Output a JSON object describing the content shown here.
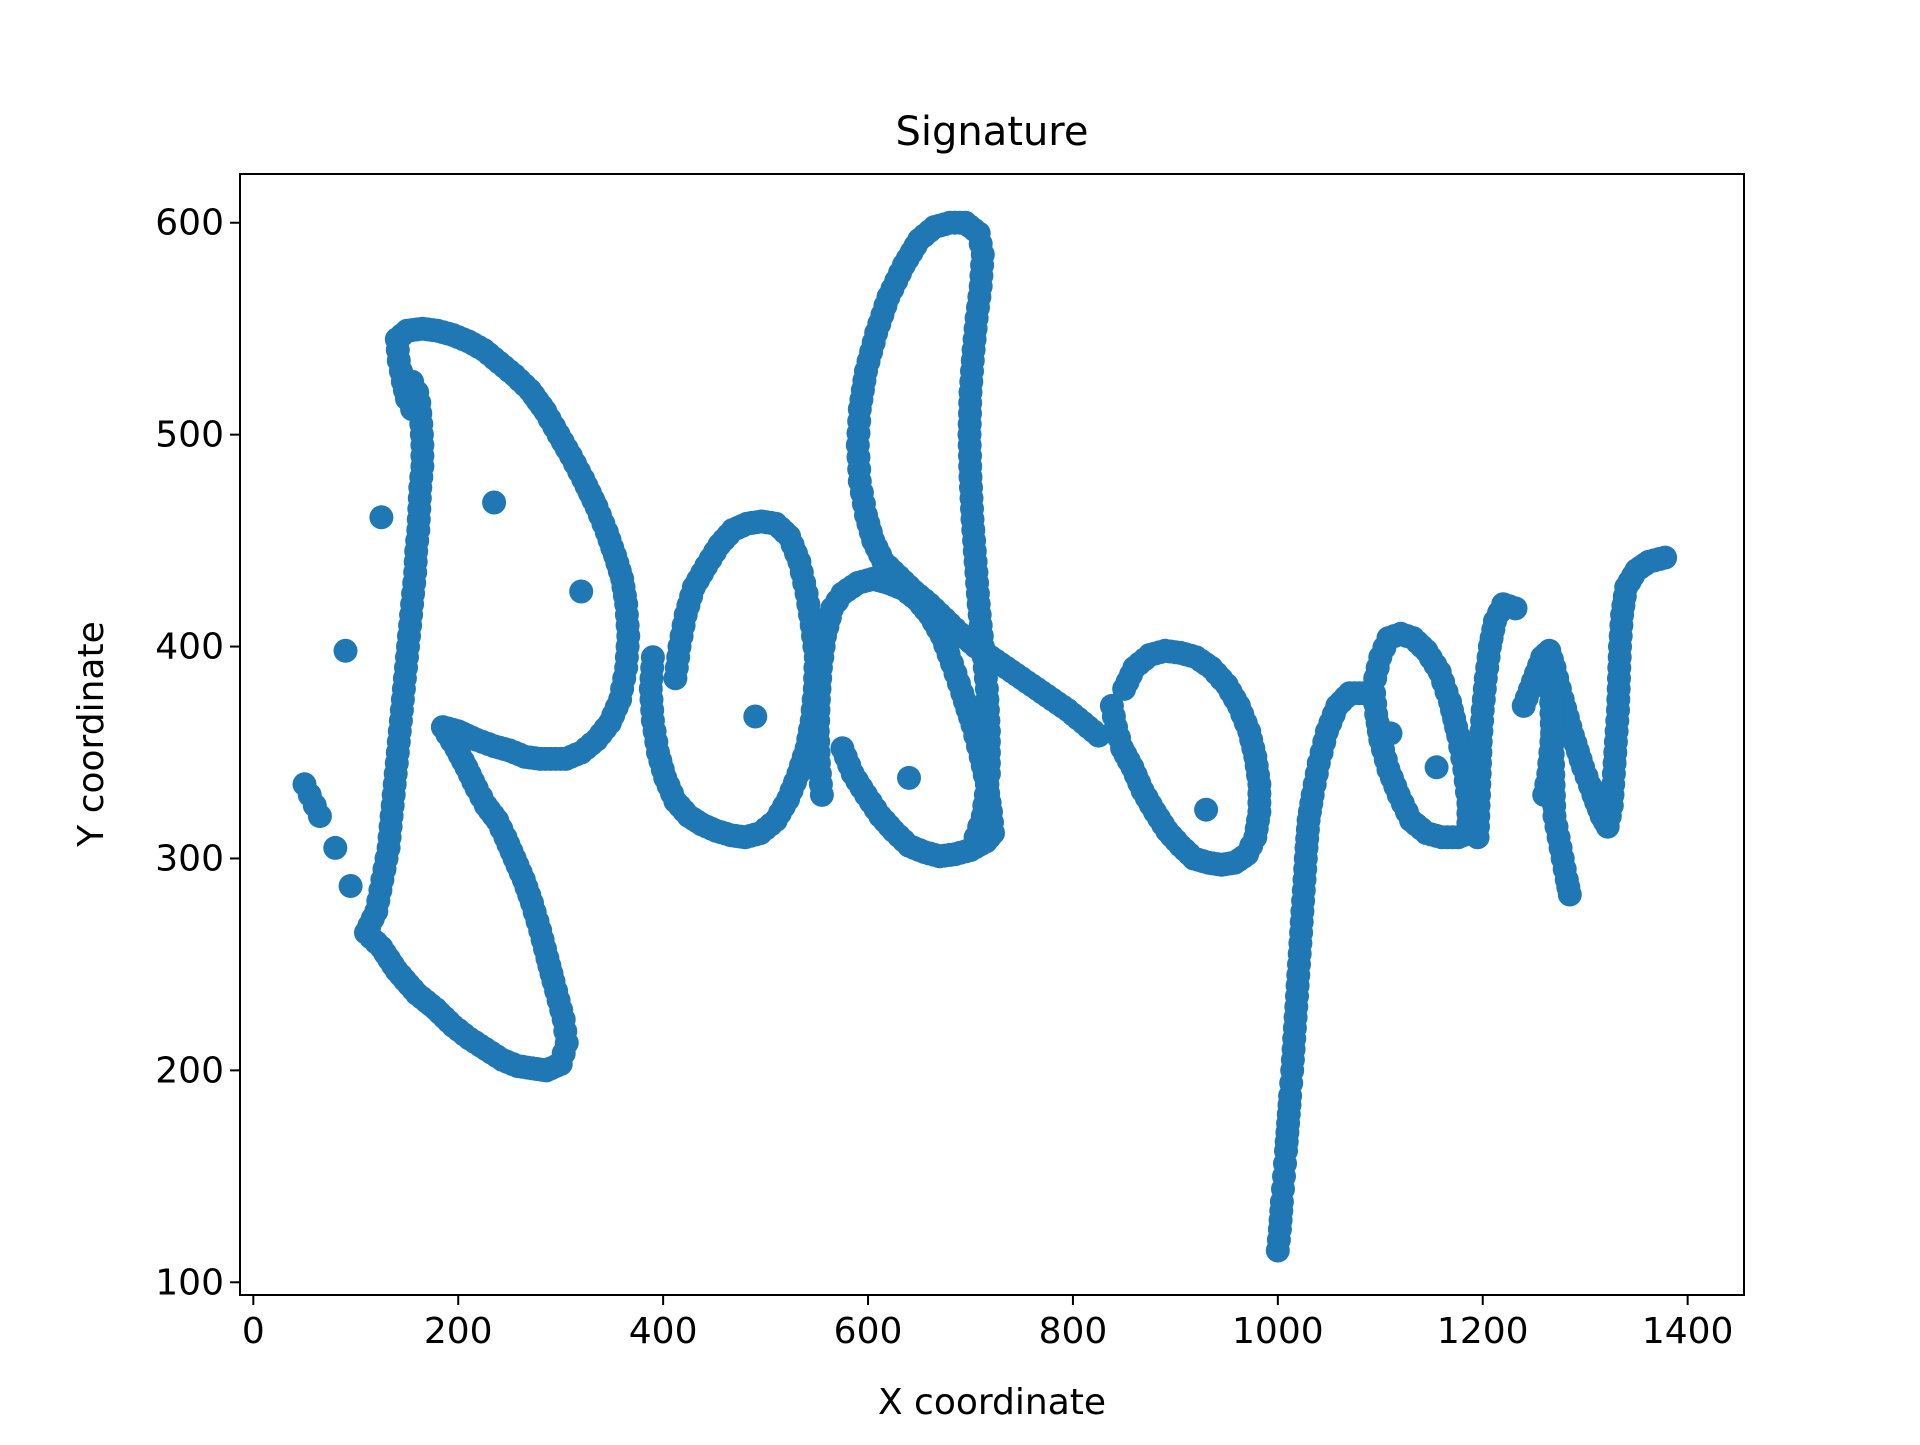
{
  "chart_data": {
    "type": "scatter",
    "title": "Signature",
    "xlabel": "X coordinate",
    "ylabel": "Y coordinate",
    "xlim": [
      -13,
      1455
    ],
    "ylim": [
      94,
      623
    ],
    "xticks": [
      0,
      200,
      400,
      600,
      800,
      1000,
      1200,
      1400
    ],
    "yticks": [
      100,
      200,
      300,
      400,
      500,
      600
    ],
    "grid": false,
    "legend": "none",
    "marker_color": "#1f77b4",
    "strokes": [
      [
        [
          50,
          335
        ],
        [
          55,
          330
        ],
        [
          60,
          325
        ],
        [
          65,
          320
        ]
      ],
      [
        [
          155,
          525
        ],
        [
          160,
          520
        ],
        [
          162,
          515
        ],
        [
          164,
          505
        ],
        [
          165,
          495
        ],
        [
          165,
          485
        ],
        [
          163,
          475
        ],
        [
          162,
          465
        ],
        [
          161,
          455
        ],
        [
          159,
          445
        ],
        [
          158,
          435
        ],
        [
          156,
          425
        ],
        [
          154,
          415
        ],
        [
          152,
          405
        ],
        [
          150,
          395
        ],
        [
          148,
          385
        ],
        [
          146,
          375
        ],
        [
          144,
          365
        ],
        [
          142,
          355
        ],
        [
          140,
          345
        ],
        [
          138,
          335
        ],
        [
          136,
          325
        ],
        [
          134,
          315
        ],
        [
          132,
          305
        ],
        [
          128,
          295
        ],
        [
          124,
          285
        ],
        [
          120,
          275
        ],
        [
          110,
          265
        ],
        [
          125,
          258
        ],
        [
          140,
          247
        ],
        [
          160,
          236
        ],
        [
          178,
          229
        ],
        [
          195,
          221
        ],
        [
          211,
          215
        ],
        [
          227,
          210
        ],
        [
          243,
          205
        ],
        [
          258,
          202
        ],
        [
          272,
          201
        ],
        [
          286,
          200
        ],
        [
          300,
          203
        ],
        [
          306,
          213
        ],
        [
          303,
          224
        ],
        [
          298,
          233
        ],
        [
          293,
          242
        ],
        [
          287,
          253
        ],
        [
          280,
          266
        ],
        [
          272,
          279
        ],
        [
          264,
          290
        ],
        [
          255,
          300
        ],
        [
          246,
          310
        ],
        [
          238,
          318
        ],
        [
          227,
          325
        ],
        [
          218,
          333
        ],
        [
          208,
          343
        ],
        [
          198,
          352
        ],
        [
          185,
          362
        ],
        [
          200,
          360
        ],
        [
          218,
          356
        ],
        [
          235,
          353
        ],
        [
          250,
          351
        ],
        [
          265,
          348
        ],
        [
          280,
          347
        ],
        [
          295,
          347
        ],
        [
          305,
          347
        ],
        [
          320,
          350
        ],
        [
          335,
          356
        ],
        [
          348,
          364
        ],
        [
          358,
          375
        ],
        [
          364,
          390
        ],
        [
          366,
          405
        ],
        [
          364,
          420
        ],
        [
          360,
          432
        ],
        [
          353,
          443
        ],
        [
          345,
          454
        ],
        [
          335,
          466
        ],
        [
          322,
          479
        ],
        [
          310,
          490
        ],
        [
          298,
          500
        ],
        [
          285,
          511
        ],
        [
          270,
          521
        ],
        [
          255,
          528
        ],
        [
          240,
          534
        ],
        [
          225,
          540
        ],
        [
          210,
          544
        ],
        [
          195,
          547
        ],
        [
          180,
          549
        ],
        [
          165,
          550
        ],
        [
          150,
          549
        ],
        [
          140,
          545
        ],
        [
          142,
          535
        ],
        [
          146,
          525
        ],
        [
          150,
          517
        ],
        [
          155,
          512
        ]
      ],
      [
        [
          390,
          395
        ],
        [
          388,
          380
        ],
        [
          390,
          365
        ],
        [
          395,
          350
        ],
        [
          402,
          338
        ],
        [
          412,
          327
        ],
        [
          425,
          320
        ],
        [
          438,
          316
        ],
        [
          452,
          313
        ],
        [
          466,
          311
        ],
        [
          480,
          310
        ],
        [
          495,
          312
        ],
        [
          510,
          318
        ],
        [
          522,
          328
        ],
        [
          532,
          340
        ],
        [
          540,
          352
        ],
        [
          545,
          365
        ],
        [
          548,
          380
        ],
        [
          549,
          395
        ],
        [
          545,
          410
        ],
        [
          540,
          425
        ],
        [
          533,
          440
        ],
        [
          523,
          452
        ],
        [
          510,
          458
        ],
        [
          496,
          459
        ],
        [
          482,
          458
        ],
        [
          468,
          455
        ],
        [
          455,
          448
        ],
        [
          442,
          438
        ],
        [
          430,
          428
        ],
        [
          422,
          415
        ],
        [
          416,
          400
        ],
        [
          412,
          385
        ]
      ],
      [
        [
          555,
          330
        ],
        [
          552,
          345
        ],
        [
          551,
          360
        ],
        [
          552,
          375
        ],
        [
          554,
          390
        ],
        [
          558,
          405
        ],
        [
          565,
          418
        ],
        [
          575,
          425
        ],
        [
          590,
          430
        ],
        [
          605,
          432
        ],
        [
          620,
          430
        ],
        [
          635,
          427
        ],
        [
          648,
          422
        ],
        [
          660,
          415
        ],
        [
          672,
          405
        ],
        [
          682,
          392
        ],
        [
          692,
          378
        ],
        [
          702,
          363
        ],
        [
          710,
          348
        ],
        [
          716,
          335
        ],
        [
          720,
          322
        ],
        [
          722,
          312
        ],
        [
          715,
          308
        ],
        [
          700,
          304
        ],
        [
          685,
          302
        ],
        [
          670,
          301
        ],
        [
          655,
          303
        ],
        [
          640,
          306
        ],
        [
          625,
          313
        ],
        [
          612,
          320
        ],
        [
          598,
          330
        ],
        [
          585,
          340
        ],
        [
          575,
          352
        ]
      ],
      [
        [
          705,
          310
        ],
        [
          712,
          320
        ],
        [
          718,
          340
        ],
        [
          718,
          360
        ],
        [
          716,
          380
        ],
        [
          712,
          400
        ],
        [
          708,
          420
        ],
        [
          705,
          440
        ],
        [
          702,
          460
        ],
        [
          700,
          480
        ],
        [
          699,
          500
        ],
        [
          700,
          520
        ],
        [
          703,
          540
        ],
        [
          706,
          555
        ],
        [
          710,
          570
        ],
        [
          712,
          585
        ],
        [
          708,
          595
        ],
        [
          695,
          600
        ],
        [
          680,
          600
        ],
        [
          665,
          598
        ],
        [
          650,
          592
        ],
        [
          635,
          580
        ],
        [
          620,
          565
        ],
        [
          608,
          548
        ],
        [
          598,
          530
        ],
        [
          592,
          512
        ],
        [
          590,
          495
        ],
        [
          592,
          478
        ],
        [
          598,
          462
        ],
        [
          605,
          450
        ],
        [
          615,
          440
        ],
        [
          630,
          433
        ],
        [
          645,
          426
        ],
        [
          660,
          420
        ],
        [
          675,
          413
        ],
        [
          690,
          406
        ],
        [
          705,
          400
        ],
        [
          720,
          395
        ],
        [
          735,
          390
        ],
        [
          750,
          385
        ],
        [
          765,
          380
        ],
        [
          780,
          375
        ],
        [
          795,
          370
        ],
        [
          810,
          364
        ],
        [
          825,
          358
        ]
      ],
      [
        [
          850,
          380
        ],
        [
          860,
          390
        ],
        [
          875,
          396
        ],
        [
          890,
          398
        ],
        [
          905,
          397
        ],
        [
          920,
          395
        ],
        [
          935,
          390
        ],
        [
          950,
          382
        ],
        [
          962,
          372
        ],
        [
          972,
          360
        ],
        [
          978,
          348
        ],
        [
          982,
          335
        ],
        [
          982,
          322
        ],
        [
          978,
          310
        ],
        [
          970,
          302
        ],
        [
          958,
          298
        ],
        [
          945,
          297
        ],
        [
          932,
          298
        ],
        [
          918,
          300
        ],
        [
          905,
          306
        ],
        [
          892,
          313
        ],
        [
          880,
          322
        ],
        [
          868,
          332
        ],
        [
          858,
          343
        ],
        [
          848,
          352
        ],
        [
          842,
          362
        ],
        [
          838,
          372
        ]
      ],
      [
        [
          1000,
          115
        ],
        [
          1002,
          125
        ],
        [
          1004,
          138
        ],
        [
          1006,
          150
        ],
        [
          1008,
          162
        ],
        [
          1010,
          175
        ],
        [
          1012,
          188
        ],
        [
          1014,
          200
        ],
        [
          1016,
          215
        ],
        [
          1018,
          230
        ],
        [
          1020,
          245
        ],
        [
          1022,
          260
        ],
        [
          1024,
          275
        ],
        [
          1026,
          290
        ],
        [
          1028,
          305
        ],
        [
          1030,
          318
        ],
        [
          1034,
          330
        ],
        [
          1040,
          345
        ],
        [
          1048,
          360
        ],
        [
          1058,
          372
        ],
        [
          1070,
          378
        ],
        [
          1084,
          378
        ]
      ],
      [
        [
          1095,
          385
        ],
        [
          1100,
          395
        ],
        [
          1108,
          404
        ],
        [
          1120,
          406
        ],
        [
          1132,
          404
        ],
        [
          1145,
          398
        ],
        [
          1158,
          388
        ],
        [
          1168,
          374
        ],
        [
          1176,
          358
        ],
        [
          1182,
          342
        ],
        [
          1186,
          326
        ],
        [
          1186,
          312
        ],
        [
          1176,
          310
        ],
        [
          1160,
          310
        ],
        [
          1145,
          312
        ],
        [
          1130,
          318
        ],
        [
          1118,
          330
        ],
        [
          1108,
          342
        ],
        [
          1100,
          356
        ],
        [
          1096,
          368
        ],
        [
          1094,
          378
        ]
      ],
      [
        [
          1195,
          310
        ],
        [
          1196,
          325
        ],
        [
          1197,
          340
        ],
        [
          1198,
          355
        ],
        [
          1200,
          370
        ],
        [
          1203,
          385
        ],
        [
          1207,
          400
        ],
        [
          1212,
          412
        ],
        [
          1220,
          420
        ],
        [
          1232,
          418
        ]
      ],
      [
        [
          1240,
          372
        ],
        [
          1258,
          395
        ],
        [
          1265,
          398
        ],
        [
          1270,
          390
        ],
        [
          1278,
          375
        ],
        [
          1288,
          358
        ],
        [
          1298,
          343
        ],
        [
          1308,
          330
        ],
        [
          1316,
          320
        ],
        [
          1322,
          315
        ],
        [
          1326,
          325
        ],
        [
          1328,
          340
        ],
        [
          1330,
          355
        ],
        [
          1332,
          370
        ],
        [
          1333,
          385
        ],
        [
          1334,
          400
        ],
        [
          1336,
          415
        ],
        [
          1340,
          428
        ],
        [
          1350,
          436
        ],
        [
          1362,
          440
        ],
        [
          1378,
          442
        ]
      ],
      [
        [
          1260,
          330
        ],
        [
          1264,
          340
        ],
        [
          1266,
          350
        ],
        [
          1268,
          360
        ],
        [
          1268,
          375
        ],
        [
          1266,
          388
        ],
        [
          1270,
          320
        ],
        [
          1274,
          310
        ],
        [
          1278,
          300
        ],
        [
          1282,
          290
        ],
        [
          1285,
          283
        ]
      ]
    ],
    "points": [
      [
        90,
        398
      ],
      [
        125,
        461
      ],
      [
        235,
        468
      ],
      [
        320,
        426
      ],
      [
        490,
        367
      ],
      [
        640,
        338
      ],
      [
        1110,
        359
      ],
      [
        1155,
        343
      ],
      [
        80,
        305
      ],
      [
        95,
        287
      ],
      [
        930,
        323
      ]
    ]
  }
}
